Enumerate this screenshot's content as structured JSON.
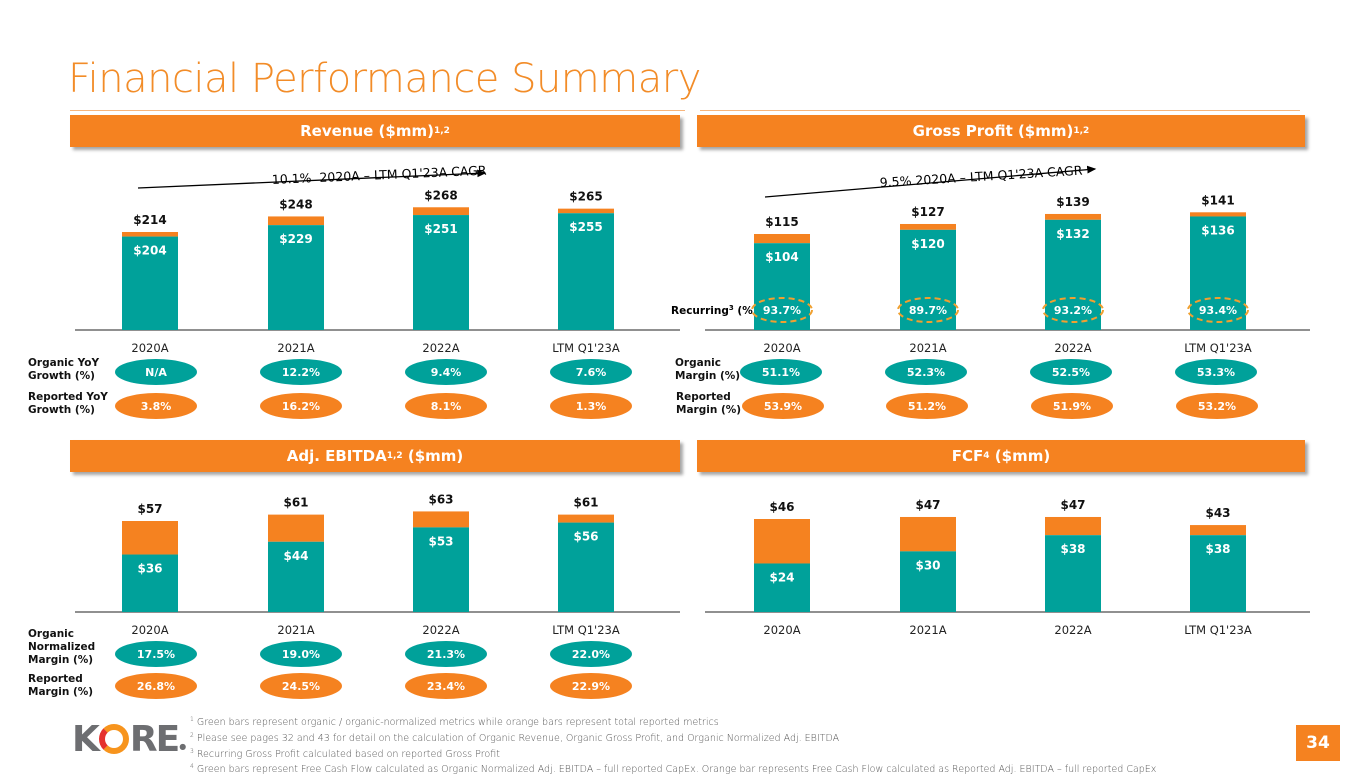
{
  "page": {
    "title": "Financial Performance Summary",
    "page_number": "34",
    "logo_text": {
      "k": "K",
      "rest": "RE"
    },
    "colors": {
      "accent_orange": "#f58220",
      "green": "#00a19a",
      "title_orange": "#f28c28"
    }
  },
  "panels": {
    "revenue": {
      "header": "Revenue ($mm)",
      "header_sup": "1,2",
      "cagr_label": "10.1%  2020A – LTM Q1'23A CAGR"
    },
    "gross_profit": {
      "header": "Gross Profit ($mm)",
      "header_sup": "1,2",
      "cagr_label": "9.5%  2020A – LTM Q1'23A CAGR",
      "recurring_label": "Recurring",
      "recurring_sup": "3",
      "recurring_suffix": " (%)"
    },
    "ebitda": {
      "header_pre": "Adj. EBITDA",
      "header_sup": "1,2",
      "header_post": " ($mm)"
    },
    "fcf": {
      "header_pre": "FCF",
      "header_sup": "4",
      "header_post": " ($mm)"
    }
  },
  "metric_rows": {
    "revenue_organic": {
      "label_line1": "Organic YoY",
      "label_line2": "Growth (%)",
      "values": [
        "N/A",
        "12.2%",
        "9.4%",
        "7.6%"
      ]
    },
    "revenue_reported": {
      "label_line1": "Reported YoY",
      "label_line2": "Growth (%)",
      "values": [
        "3.8%",
        "16.2%",
        "8.1%",
        "1.3%"
      ]
    },
    "gp_organic": {
      "label_line1": "Organic",
      "label_line2": "Margin (%)",
      "values": [
        "51.1%",
        "52.3%",
        "52.5%",
        "53.3%"
      ]
    },
    "gp_reported": {
      "label_line1": "Reported",
      "label_line2": "Margin (%)",
      "values": [
        "53.9%",
        "51.2%",
        "51.9%",
        "53.2%"
      ]
    },
    "ebitda_organic": {
      "label_line1": "Organic",
      "label_line2": "Normalized",
      "label_line3": "Margin (%)",
      "values": [
        "17.5%",
        "19.0%",
        "21.3%",
        "22.0%"
      ]
    },
    "ebitda_reported": {
      "label_line1": "Reported",
      "label_line2": "Margin (%)",
      "values": [
        "26.8%",
        "24.5%",
        "23.4%",
        "22.9%"
      ]
    }
  },
  "footnotes": [
    {
      "sup": "1",
      "text": " Green bars represent organic / organic-normalized metrics while orange bars represent total reported metrics"
    },
    {
      "sup": "2",
      "text": " Please see pages 32 and 43 for detail on the calculation of Organic Revenue, Organic Gross Profit, and Organic Normalized Adj. EBITDA"
    },
    {
      "sup": "3",
      "text": " Recurring Gross Profit calculated based on reported Gross Profit"
    },
    {
      "sup": "4",
      "text": " Green bars represent Free Cash Flow calculated as Organic Normalized Adj. EBITDA – full reported CapEx. Orange bar represents Free Cash Flow calculated as Reported Adj. EBITDA – full reported CapEx"
    }
  ],
  "chart_data": [
    {
      "type": "bar",
      "stacked": true,
      "title": "Revenue ($mm)",
      "categories": [
        "2020A",
        "2021A",
        "2022A",
        "LTM Q1'23A"
      ],
      "series": [
        {
          "name": "Organic",
          "color": "#00a19a",
          "values": [
            204,
            229,
            251,
            255
          ],
          "labels": [
            "$204",
            "$229",
            "$251",
            "$255"
          ]
        },
        {
          "name": "Reported total",
          "color": "#f58220",
          "values": [
            214,
            248,
            268,
            265
          ],
          "labels": [
            "$214",
            "$248",
            "$268",
            "$265"
          ]
        }
      ],
      "annotation": "10.1% 2020A – LTM Q1'23A CAGR",
      "ylim": [
        0,
        290
      ]
    },
    {
      "type": "bar",
      "stacked": true,
      "title": "Gross Profit ($mm)",
      "categories": [
        "2020A",
        "2021A",
        "2022A",
        "LTM Q1'23A"
      ],
      "series": [
        {
          "name": "Organic",
          "color": "#00a19a",
          "values": [
            104,
            120,
            132,
            136
          ],
          "labels": [
            "$104",
            "$120",
            "$132",
            "$136"
          ]
        },
        {
          "name": "Reported total",
          "color": "#f58220",
          "values": [
            115,
            127,
            139,
            141
          ],
          "labels": [
            "$115",
            "$127",
            "$139",
            "$141"
          ]
        }
      ],
      "recurring_pct": [
        "93.7%",
        "89.7%",
        "93.2%",
        "93.4%"
      ],
      "annotation": "9.5% 2020A – LTM Q1'23A CAGR",
      "ylim": [
        0,
        152
      ]
    },
    {
      "type": "bar",
      "stacked": true,
      "title": "Adj. EBITDA ($mm)",
      "categories": [
        "2020A",
        "2021A",
        "2022A",
        "LTM Q1'23A"
      ],
      "series": [
        {
          "name": "Organic normalized",
          "color": "#00a19a",
          "values": [
            36,
            44,
            53,
            56
          ],
          "labels": [
            "$36",
            "$44",
            "$53",
            "$56"
          ]
        },
        {
          "name": "Reported total",
          "color": "#f58220",
          "values": [
            57,
            61,
            63,
            61
          ],
          "labels": [
            "$57",
            "$61",
            "$63",
            "$61"
          ]
        }
      ],
      "ylim": [
        0,
        62
      ]
    },
    {
      "type": "bar",
      "stacked": true,
      "title": "FCF ($mm)",
      "categories": [
        "2020A",
        "2021A",
        "2022A",
        "LTM Q1'23A"
      ],
      "series": [
        {
          "name": "Organic normalized",
          "color": "#00a19a",
          "values": [
            24,
            30,
            38,
            38
          ],
          "labels": [
            "$24",
            "$30",
            "$38",
            "$38"
          ]
        },
        {
          "name": "Reported total",
          "color": "#f58220",
          "values": [
            46,
            47,
            47,
            43
          ],
          "labels": [
            "$46",
            "$47",
            "$47",
            "$43"
          ]
        }
      ],
      "ylim": [
        0,
        50
      ]
    }
  ]
}
